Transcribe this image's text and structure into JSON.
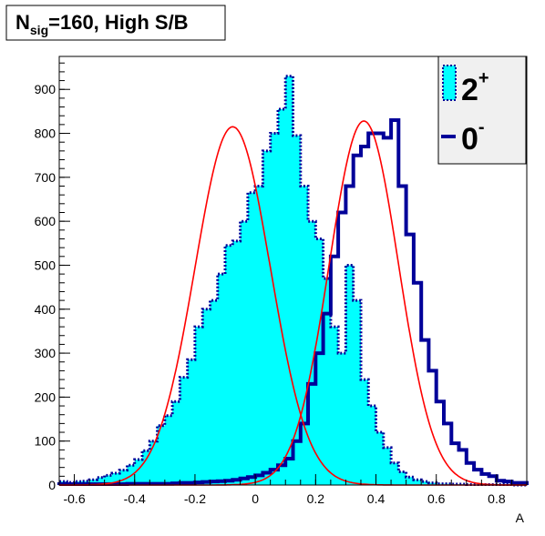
{
  "chart_data": {
    "type": "histogram",
    "title": {
      "base": "N",
      "sub": "sig",
      "rest": "=160, High S/B"
    },
    "xlabel": "A",
    "ylabel": "",
    "xlim": [
      -0.65,
      0.9
    ],
    "ylim": [
      0,
      975
    ],
    "x_ticks": [
      -0.6,
      -0.4,
      -0.2,
      0,
      0.2,
      0.4,
      0.6,
      0.8
    ],
    "x_tick_labels": [
      "-0.6",
      "-0.4",
      "-0.2",
      "0",
      "0.2",
      "0.4",
      "0.6",
      "0.8"
    ],
    "y_ticks": [
      0,
      100,
      200,
      300,
      400,
      500,
      600,
      700,
      800,
      900
    ],
    "y_tick_labels": [
      "0",
      "100",
      "200",
      "300",
      "400",
      "500",
      "600",
      "700",
      "800",
      "900"
    ],
    "bin_width": 0.025,
    "grid": false,
    "legend_position": "top-right",
    "series": [
      {
        "name": "2",
        "superscript": "+",
        "style": "filled-dotted",
        "fill": "#00ffff",
        "line": "#000099",
        "bin_start": -0.65,
        "values": [
          8,
          6,
          8,
          9,
          12,
          17,
          22,
          27,
          34,
          45,
          58,
          78,
          100,
          135,
          158,
          190,
          245,
          285,
          360,
          400,
          420,
          480,
          545,
          555,
          600,
          665,
          680,
          760,
          800,
          855,
          930,
          795,
          680,
          600,
          560,
          470,
          360,
          300,
          500,
          420,
          240,
          180,
          120,
          85,
          50,
          30,
          18,
          12,
          8,
          5,
          3,
          3,
          2,
          2,
          1,
          1,
          1,
          1,
          1,
          1,
          0,
          0
        ]
      },
      {
        "name": "0",
        "superscript": "-",
        "style": "line",
        "fill": "none",
        "line": "#000099",
        "bin_start": -0.65,
        "values": [
          2,
          2,
          2,
          2,
          2,
          2,
          2,
          2,
          2,
          3,
          3,
          3,
          3,
          3,
          3,
          4,
          5,
          5,
          6,
          7,
          8,
          9,
          10,
          12,
          15,
          18,
          22,
          28,
          35,
          45,
          60,
          100,
          140,
          230,
          300,
          390,
          520,
          620,
          680,
          750,
          770,
          800,
          800,
          790,
          830,
          680,
          570,
          460,
          330,
          260,
          190,
          140,
          95,
          80,
          50,
          35,
          25,
          20,
          10,
          8,
          5,
          5
        ]
      }
    ],
    "fits": [
      {
        "name": "fit-2plus",
        "color": "#ff0000",
        "amplitude": 815,
        "mean": -0.075,
        "sigma": 0.125
      },
      {
        "name": "fit-0minus",
        "color": "#ff0000",
        "amplitude": 828,
        "mean": 0.36,
        "sigma": 0.115
      }
    ]
  }
}
